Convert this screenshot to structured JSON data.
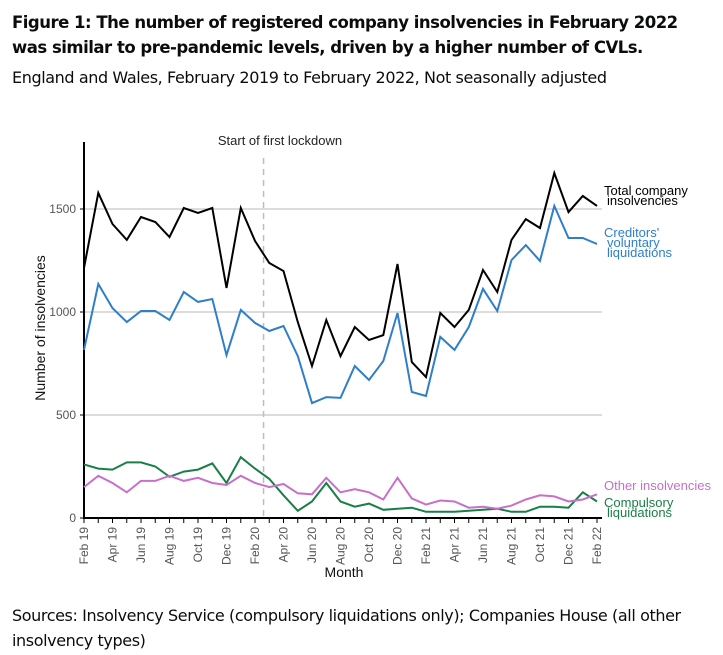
{
  "header": {
    "title": "Figure 1: The number of registered company insolvencies in February 2022 was similar to pre-pandemic levels, driven by a higher number of CVLs.",
    "subtitle": "England and Wales, February 2019 to February 2022, Not seasonally adjusted"
  },
  "footer": {
    "source": "Sources: Insolvency Service (compulsory liquidations only); Companies House (all other insolvency types)"
  },
  "chart_data": {
    "type": "line",
    "title": "Figure 1: The number of registered company insolvencies in February 2022 was similar to pre-pandemic levels, driven by a higher number of CVLs.",
    "subtitle": "England and Wales, February 2019 to February 2022, Not seasonally adjusted",
    "xlabel": "Month",
    "ylabel": "Number of insolvencies",
    "ylim": [
      0,
      1850
    ],
    "yticks": [
      0,
      500,
      1000,
      1500
    ],
    "grid": true,
    "legend_placement": "right (inline labels at line ends)",
    "x": [
      "Feb 19",
      "Mar 19",
      "Apr 19",
      "May 19",
      "Jun 19",
      "Jul 19",
      "Aug 19",
      "Sep 19",
      "Oct 19",
      "Nov 19",
      "Dec 19",
      "Jan 20",
      "Feb 20",
      "Mar 20",
      "Apr 20",
      "May 20",
      "Jun 20",
      "Jul 20",
      "Aug 20",
      "Sep 20",
      "Oct 20",
      "Nov 20",
      "Dec 20",
      "Jan 21",
      "Feb 21",
      "Mar 21",
      "Apr 21",
      "May 21",
      "Jun 21",
      "Jul 21",
      "Aug 21",
      "Sep 21",
      "Oct 21",
      "Nov 21",
      "Dec 21",
      "Jan 22",
      "Feb 22"
    ],
    "xtick_labels": [
      "Feb 19",
      "Apr 19",
      "Jun 19",
      "Aug 19",
      "Oct 19",
      "Dec 19",
      "Feb 20",
      "Apr 20",
      "Jun 20",
      "Aug 20",
      "Oct 20",
      "Dec 20",
      "Feb 21",
      "Apr 21",
      "Jun 21",
      "Aug 21",
      "Oct 21",
      "Dec 21",
      "Feb 22"
    ],
    "annotations": [
      {
        "text": "Start of first lockdown",
        "x": "Mar 20 (between Mar 20 and Apr 20)",
        "style": "dashed vertical line"
      }
    ],
    "series": [
      {
        "name": "Total company insolvencies",
        "legend_label": [
          "Total company",
          "insolvencies"
        ],
        "color": "#000000",
        "values": [
          1214,
          1578,
          1427,
          1350,
          1461,
          1437,
          1364,
          1505,
          1481,
          1505,
          1117,
          1505,
          1345,
          1238,
          1199,
          951,
          738,
          961,
          786,
          927,
          864,
          888,
          1233,
          757,
          684,
          995,
          927,
          1010,
          1204,
          1097,
          1350,
          1451,
          1408,
          1675,
          1485,
          1563,
          1515
        ]
      },
      {
        "name": "Creditors' voluntary liquidations",
        "legend_label": [
          "Creditors'",
          "voluntary",
          "liquidations"
        ],
        "color": "#2e7fc8",
        "values": [
          816,
          1136,
          1019,
          951,
          1005,
          1005,
          961,
          1097,
          1049,
          1063,
          791,
          1010,
          947,
          908,
          932,
          786,
          558,
          587,
          583,
          738,
          670,
          762,
          995,
          612,
          592,
          879,
          816,
          927,
          1112,
          1005,
          1252,
          1325,
          1248,
          1515,
          1359,
          1359,
          1330
        ]
      },
      {
        "name": "Other insolvencies",
        "legend_label": [
          "Other insolvencies"
        ],
        "color": "#c770c9",
        "values": [
          150,
          205,
          170,
          125,
          180,
          180,
          205,
          180,
          195,
          170,
          160,
          205,
          170,
          150,
          165,
          120,
          115,
          195,
          125,
          140,
          125,
          90,
          195,
          95,
          65,
          85,
          80,
          50,
          55,
          45,
          60,
          90,
          110,
          105,
          80,
          90,
          115
        ]
      },
      {
        "name": "Compulsory liquidations",
        "legend_label": [
          "Compulsory",
          "liquidations"
        ],
        "color": "#1a7f47",
        "values": [
          260,
          240,
          235,
          270,
          270,
          250,
          200,
          225,
          235,
          265,
          170,
          295,
          240,
          190,
          110,
          35,
          80,
          170,
          80,
          55,
          70,
          40,
          45,
          50,
          30,
          30,
          30,
          35,
          40,
          45,
          30,
          30,
          55,
          55,
          50,
          125,
          80
        ]
      }
    ]
  }
}
